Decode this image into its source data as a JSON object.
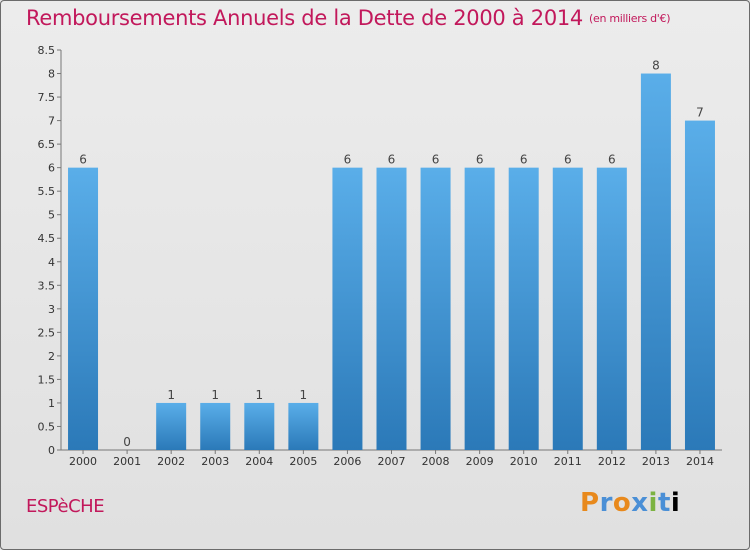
{
  "title": "Remboursements Annuels de la Dette de 2000 à 2014",
  "subtitle": "(en milliers d'€)",
  "commune": "ESPèCHE",
  "logo": [
    "P",
    "r",
    "o",
    "x",
    "i",
    "t",
    "i"
  ],
  "colors": {
    "title": "#c2185b",
    "bar_top": "#5aaee9",
    "bar_bottom": "#2b79b8"
  },
  "chart_data": {
    "type": "bar",
    "categories": [
      "2000",
      "2001",
      "2002",
      "2003",
      "2004",
      "2005",
      "2006",
      "2007",
      "2008",
      "2009",
      "2010",
      "2011",
      "2012",
      "2013",
      "2014"
    ],
    "values": [
      6,
      0,
      1,
      1,
      1,
      1,
      6,
      6,
      6,
      6,
      6,
      6,
      6,
      8,
      7
    ],
    "data_labels": [
      "6",
      "0",
      "1",
      "1",
      "1",
      "1",
      "6",
      "6",
      "6",
      "6",
      "6",
      "6",
      "6",
      "8",
      "7"
    ],
    "y_ticks": [
      "0",
      "0.5",
      "1",
      "1.5",
      "2",
      "2.5",
      "3",
      "3.5",
      "4",
      "4.5",
      "5",
      "5.5",
      "6",
      "6.5",
      "7",
      "7.5",
      "8",
      "8.5"
    ],
    "title": "Remboursements Annuels de la Dette de 2000 à 2014",
    "xlabel": "",
    "ylabel": "",
    "ylim": [
      0,
      8.5
    ],
    "grid": false,
    "legend": "none"
  }
}
